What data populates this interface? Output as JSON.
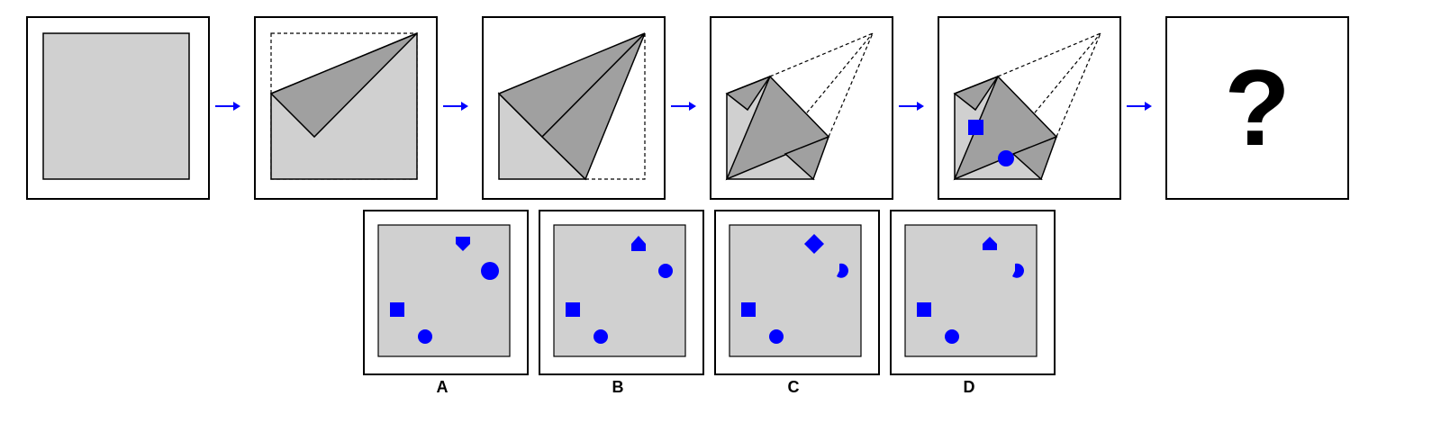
{
  "sequence": {
    "question_mark": "?"
  },
  "colors": {
    "paper": "#d0d0d0",
    "fold": "#a0a0a0",
    "stroke": "#000000",
    "arrow": "#0000ff",
    "mark": "#0000ff"
  },
  "options": [
    {
      "label": "A"
    },
    {
      "label": "B"
    },
    {
      "label": "C"
    },
    {
      "label": "D"
    }
  ],
  "icons": [
    "arrow-right-icon",
    "square-icon",
    "circle-icon",
    "pentagon-icon",
    "diamond-icon",
    "house-icon"
  ]
}
